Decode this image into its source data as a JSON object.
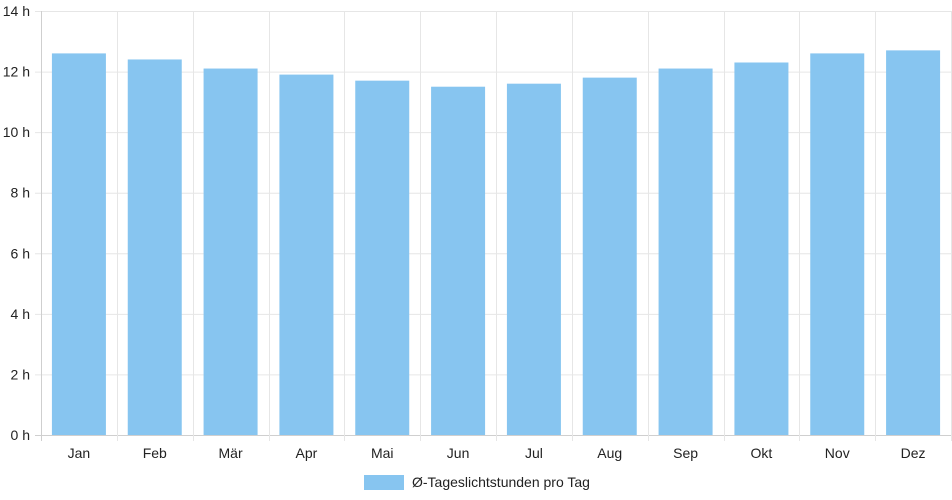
{
  "chart_data": {
    "type": "bar",
    "categories": [
      "Jan",
      "Feb",
      "Mär",
      "Apr",
      "Mai",
      "Jun",
      "Jul",
      "Aug",
      "Sep",
      "Okt",
      "Nov",
      "Dez"
    ],
    "series": [
      {
        "name": "Ø-Tageslichtstunden pro Tag",
        "values": [
          12.6,
          12.4,
          12.1,
          11.9,
          11.7,
          11.5,
          11.6,
          11.8,
          12.1,
          12.3,
          12.6,
          12.7
        ],
        "color": "#87c5f0"
      }
    ],
    "ylim": [
      0,
      14
    ],
    "yticks": [
      0,
      2,
      4,
      6,
      8,
      10,
      12,
      14
    ],
    "ytick_labels": [
      "0 h",
      "2 h",
      "4 h",
      "6 h",
      "8 h",
      "10 h",
      "12 h",
      "14 h"
    ],
    "grid": true,
    "grid_color": "#e6e6e6",
    "axis_color": "#cfcfcf",
    "legend_position": "bottom"
  }
}
